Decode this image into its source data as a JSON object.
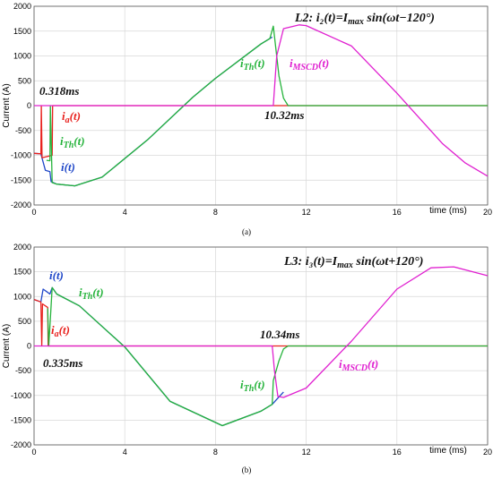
{
  "chart_data": [
    {
      "type": "line",
      "caption": "(a)",
      "title": "L2: i₂(t)=I",
      "title_sub": "max",
      "title_tail": " sin(ωt−120°)",
      "xlabel": "time (ms)",
      "ylabel": "Current (A)",
      "xlim": [
        0,
        20
      ],
      "ylim": [
        -2000,
        2000
      ],
      "xticks": [
        0,
        4,
        8,
        12,
        16,
        20
      ],
      "yticks": [
        -2000,
        -1500,
        -1000,
        -500,
        0,
        500,
        1000,
        1500,
        2000
      ],
      "annotations": [
        {
          "id": "t1",
          "text": "0.318ms",
          "color": "#111111"
        },
        {
          "id": "t2",
          "text": "10.32ms",
          "color": "#111111"
        },
        {
          "id": "ia",
          "text": "i",
          "sub": "a",
          "tail": "(t)",
          "color": "#e8211d"
        },
        {
          "id": "ith1",
          "text": "i",
          "sub": "Th",
          "tail": "(t)",
          "color": "#25b33b"
        },
        {
          "id": "i",
          "text": "i(t)",
          "color": "#1f47c8"
        },
        {
          "id": "ith2",
          "text": "i",
          "sub": "Th",
          "tail": "(t)",
          "color": "#25b33b"
        },
        {
          "id": "imscd",
          "text": "i",
          "sub": "MSCD",
          "tail": "(t)",
          "color": "#e020d0"
        }
      ],
      "series": [
        {
          "name": "i(t)",
          "color": "#1f47c8",
          "x": [
            0,
            0.3,
            0.5,
            0.7,
            0.75,
            1.0,
            1.8,
            3.0,
            5.0,
            7.0,
            8.0,
            10.0,
            10.5
          ],
          "y": [
            -960,
            -970,
            -1300,
            -1330,
            -1530,
            -1580,
            -1615,
            -1440,
            -690,
            170,
            550,
            1240,
            1380
          ]
        },
        {
          "name": "i_a(t)",
          "color": "#e8211d",
          "x": [
            0,
            0.3,
            0.32,
            0.35,
            0.8,
            0.82,
            11.0,
            11.05,
            20
          ],
          "y": [
            -960,
            -970,
            0,
            -1050,
            -1000,
            0,
            0,
            0,
            0
          ]
        },
        {
          "name": "i_Th(t)",
          "color": "#25b33b",
          "x": [
            0.55,
            0.7,
            0.72,
            0.8,
            1.0,
            1.8,
            3.0,
            5.0,
            7.0,
            8.0,
            10.0,
            10.4,
            10.55,
            10.8,
            11.0,
            11.2,
            20
          ],
          "y": [
            -1100,
            -1110,
            0,
            -1550,
            -1580,
            -1615,
            -1440,
            -690,
            170,
            550,
            1240,
            1350,
            1600,
            600,
            150,
            0,
            0
          ]
        },
        {
          "name": "i_MSCD(t)",
          "color": "#e020d0",
          "x": [
            0,
            10.5,
            10.55,
            10.7,
            11.0,
            11.7,
            12.0,
            14.0,
            16.0,
            18.0,
            19.0,
            20.0
          ],
          "y": [
            0,
            0,
            0,
            1000,
            1550,
            1625,
            1610,
            1200,
            250,
            -760,
            -1150,
            -1420
          ]
        }
      ]
    },
    {
      "type": "line",
      "caption": "(b)",
      "title": "L3: i₃(t)=I",
      "title_sub": "max",
      "title_tail": " sin(ωt+120°)",
      "xlabel": "time (ms)",
      "ylabel": "Current (A)",
      "xlim": [
        0,
        20
      ],
      "ylim": [
        -2000,
        2000
      ],
      "xticks": [
        0,
        4,
        8,
        12,
        16,
        20
      ],
      "yticks": [
        -2000,
        -1500,
        -1000,
        -500,
        0,
        500,
        1000,
        1500,
        2000
      ],
      "annotations": [
        {
          "id": "i",
          "text": "i(t)",
          "color": "#1f47c8"
        },
        {
          "id": "ith1",
          "text": "i",
          "sub": "Th",
          "tail": "(t)",
          "color": "#25b33b"
        },
        {
          "id": "ia",
          "text": "i",
          "sub": "a",
          "tail": "(t)",
          "color": "#e8211d"
        },
        {
          "id": "t1",
          "text": "0.335ms",
          "color": "#111111"
        },
        {
          "id": "t2",
          "text": "10.34ms",
          "color": "#111111"
        },
        {
          "id": "ith2",
          "text": "i",
          "sub": "Th",
          "tail": "(t)",
          "color": "#25b33b"
        },
        {
          "id": "imscd",
          "text": "i",
          "sub": "MSCD",
          "tail": "(t)",
          "color": "#e020d0"
        }
      ],
      "series": [
        {
          "name": "i(t)",
          "color": "#1f47c8",
          "x": [
            0,
            0.3,
            0.4,
            0.55,
            0.7,
            0.8,
            1.0,
            2.0,
            4.0,
            6.0,
            8.3,
            10.0,
            10.5,
            10.7,
            11.0
          ],
          "y": [
            940,
            890,
            1150,
            1100,
            1050,
            1180,
            1050,
            810,
            -20,
            -1120,
            -1610,
            -1320,
            -1180,
            -1080,
            -930
          ]
        },
        {
          "name": "i_a(t)",
          "color": "#e8211d",
          "x": [
            0,
            0.3,
            0.34,
            0.37,
            0.6,
            0.62,
            20
          ],
          "y": [
            940,
            890,
            0,
            850,
            780,
            0,
            0
          ]
        },
        {
          "name": "i_Th(t)",
          "color": "#25b33b",
          "x": [
            0.6,
            0.65,
            0.8,
            1.0,
            2.0,
            4.0,
            6.0,
            8.3,
            10.0,
            10.5,
            10.55,
            10.8,
            11.0,
            11.2,
            20
          ],
          "y": [
            760,
            0,
            1180,
            1050,
            810,
            -20,
            -1120,
            -1610,
            -1320,
            -1180,
            -700,
            -300,
            -60,
            0,
            0
          ]
        },
        {
          "name": "i_MSCD(t)",
          "color": "#e020d0",
          "x": [
            0,
            10.5,
            10.6,
            10.75,
            11.0,
            12.0,
            14.0,
            16.0,
            17.5,
            18.5,
            20.0
          ],
          "y": [
            0,
            0,
            -500,
            -1020,
            -1040,
            -850,
            100,
            1150,
            1580,
            1600,
            1420
          ]
        }
      ]
    }
  ]
}
